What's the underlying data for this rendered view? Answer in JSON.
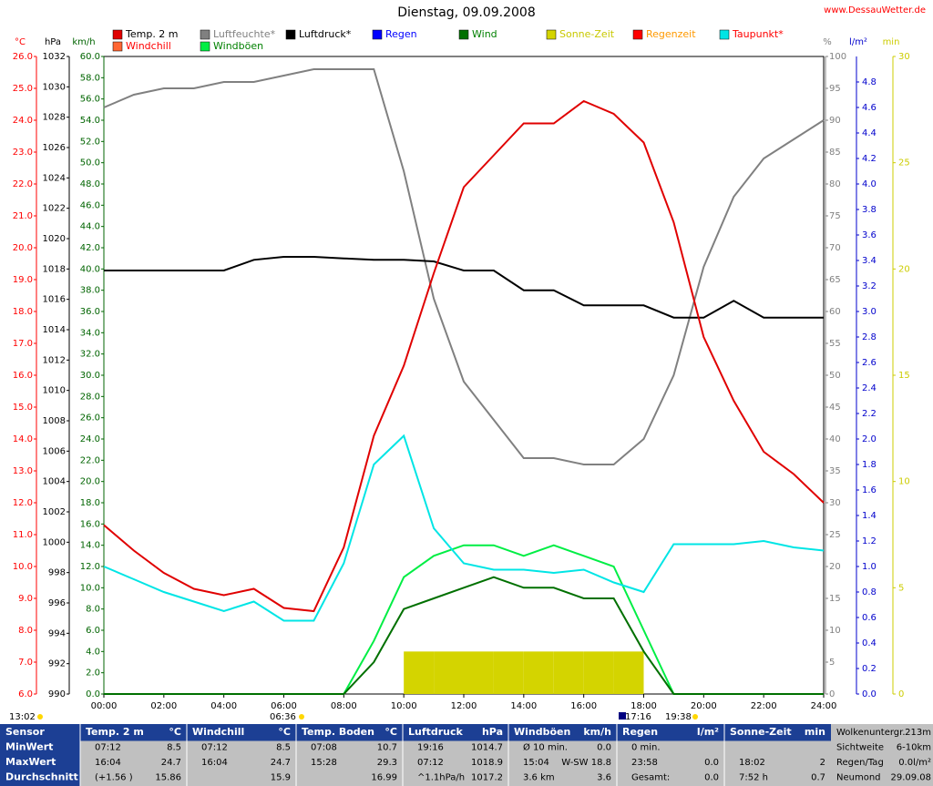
{
  "chart_data": {
    "type": "line",
    "title": "Dienstag, 09.09.2008",
    "site": "www.DessauWetter.de",
    "x": [
      0,
      1,
      2,
      3,
      4,
      5,
      6,
      7,
      8,
      9,
      10,
      11,
      12,
      13,
      14,
      15,
      16,
      17,
      18,
      19,
      20,
      21,
      22,
      23,
      24
    ],
    "xlim": [
      0,
      24
    ],
    "xticks": [
      {
        "value": 0,
        "label": "00:00"
      },
      {
        "value": 2,
        "label": "02:00"
      },
      {
        "value": 4,
        "label": "04:00"
      },
      {
        "value": 6,
        "label": "06:00"
      },
      {
        "value": 8,
        "label": "08:00"
      },
      {
        "value": 10,
        "label": "10:00"
      },
      {
        "value": 12,
        "label": "12:00"
      },
      {
        "value": 14,
        "label": "14:00"
      },
      {
        "value": 16,
        "label": "16:00"
      },
      {
        "value": 18,
        "label": "18:00"
      },
      {
        "value": 20,
        "label": "20:00"
      },
      {
        "value": 22,
        "label": "22:00"
      },
      {
        "value": 24,
        "label": "24:00"
      }
    ],
    "grid": false,
    "axes": {
      "c": {
        "label": "°C",
        "color": "#ff0000",
        "lim": [
          6,
          26
        ],
        "ticks": [
          {
            "value": 6,
            "label": "6.0"
          },
          {
            "value": 7,
            "label": "7.0"
          },
          {
            "value": 8,
            "label": "8.0"
          },
          {
            "value": 9,
            "label": "9.0"
          },
          {
            "value": 10,
            "label": "10.0"
          },
          {
            "value": 11,
            "label": "11.0"
          },
          {
            "value": 12,
            "label": "12.0"
          },
          {
            "value": 13,
            "label": "13.0"
          },
          {
            "value": 14,
            "label": "14.0"
          },
          {
            "value": 15,
            "label": "15.0"
          },
          {
            "value": 16,
            "label": "16.0"
          },
          {
            "value": 17,
            "label": "17.0"
          },
          {
            "value": 18,
            "label": "18.0"
          },
          {
            "value": 19,
            "label": "19.0"
          },
          {
            "value": 20,
            "label": "20.0"
          },
          {
            "value": 21,
            "label": "21.0"
          },
          {
            "value": 22,
            "label": "22.0"
          },
          {
            "value": 23,
            "label": "23.0"
          },
          {
            "value": 24,
            "label": "24.0"
          },
          {
            "value": 25,
            "label": "25.0"
          },
          {
            "value": 26,
            "label": "26.0"
          }
        ]
      },
      "hpa": {
        "label": "hPa",
        "color": "#000000",
        "lim": [
          990,
          1032
        ],
        "ticks": [
          990,
          992,
          994,
          996,
          998,
          1000,
          1002,
          1004,
          1006,
          1008,
          1010,
          1012,
          1014,
          1016,
          1018,
          1020,
          1022,
          1024,
          1026,
          1028,
          1030,
          1032
        ]
      },
      "kmh": {
        "label": "km/h",
        "color": "#006400",
        "lim": [
          0,
          60
        ],
        "ticks": [
          {
            "value": 0,
            "label": "0.0"
          },
          {
            "value": 2,
            "label": "2.0"
          },
          {
            "value": 4,
            "label": "4.0"
          },
          {
            "value": 6,
            "label": "6.0"
          },
          {
            "value": 8,
            "label": "8.0"
          },
          {
            "value": 10,
            "label": "10.0"
          },
          {
            "value": 12,
            "label": "12.0"
          },
          {
            "value": 14,
            "label": "14.0"
          },
          {
            "value": 16,
            "label": "16.0"
          },
          {
            "value": 18,
            "label": "18.0"
          },
          {
            "value": 20,
            "label": "20.0"
          },
          {
            "value": 22,
            "label": "22.0"
          },
          {
            "value": 24,
            "label": "24.0"
          },
          {
            "value": 26,
            "label": "26.0"
          },
          {
            "value": 28,
            "label": "28.0"
          },
          {
            "value": 30,
            "label": "30.0"
          },
          {
            "value": 32,
            "label": "32.0"
          },
          {
            "value": 34,
            "label": "34.0"
          },
          {
            "value": 36,
            "label": "36.0"
          },
          {
            "value": 38,
            "label": "38.0"
          },
          {
            "value": 40,
            "label": "40.0"
          },
          {
            "value": 42,
            "label": "42.0"
          },
          {
            "value": 44,
            "label": "44.0"
          },
          {
            "value": 46,
            "label": "46.0"
          },
          {
            "value": 48,
            "label": "48.0"
          },
          {
            "value": 50,
            "label": "50.0"
          },
          {
            "value": 52,
            "label": "52.0"
          },
          {
            "value": 54,
            "label": "54.0"
          },
          {
            "value": 56,
            "label": "56.0"
          },
          {
            "value": 58,
            "label": "58.0"
          },
          {
            "value": 60,
            "label": "60.0"
          }
        ]
      },
      "pct": {
        "label": "%",
        "color": "#808080",
        "lim": [
          0,
          100
        ],
        "ticks": [
          0,
          5,
          10,
          15,
          20,
          25,
          30,
          35,
          40,
          45,
          50,
          55,
          60,
          65,
          70,
          75,
          80,
          85,
          90,
          95,
          100
        ]
      },
      "lm2": {
        "label": "l/m²",
        "color": "#0000cc",
        "lim": [
          0,
          5
        ],
        "ticks": [
          {
            "value": 0,
            "label": "0.0"
          },
          {
            "value": 0.2,
            "label": "0.2"
          },
          {
            "value": 0.4,
            "label": "0.4"
          },
          {
            "value": 0.6,
            "label": "0.6"
          },
          {
            "value": 0.8,
            "label": "0.8"
          },
          {
            "value": 1,
            "label": "1.0"
          },
          {
            "value": 1.2,
            "label": "1.2"
          },
          {
            "value": 1.4,
            "label": "1.4"
          },
          {
            "value": 1.6,
            "label": "1.6"
          },
          {
            "value": 1.8,
            "label": "1.8"
          },
          {
            "value": 2,
            "label": "2.0"
          },
          {
            "value": 2.2,
            "label": "2.2"
          },
          {
            "value": 2.4,
            "label": "2.4"
          },
          {
            "value": 2.6,
            "label": "2.6"
          },
          {
            "value": 2.8,
            "label": "2.8"
          },
          {
            "value": 3,
            "label": "3.0"
          },
          {
            "value": 3.2,
            "label": "3.2"
          },
          {
            "value": 3.4,
            "label": "3.4"
          },
          {
            "value": 3.6,
            "label": "3.6"
          },
          {
            "value": 3.8,
            "label": "3.8"
          },
          {
            "value": 4,
            "label": "4.0"
          },
          {
            "value": 4.2,
            "label": "4.2"
          },
          {
            "value": 4.4,
            "label": "4.4"
          },
          {
            "value": 4.6,
            "label": "4.6"
          },
          {
            "value": 4.8,
            "label": "4.8"
          }
        ]
      },
      "min": {
        "label": "min",
        "color": "#cccc00",
        "lim": [
          0,
          30
        ],
        "ticks": [
          0,
          5,
          10,
          15,
          20,
          25,
          30
        ]
      }
    },
    "series": [
      {
        "name": "Sonne-Zeit",
        "color": "#d4d400",
        "axis": "min",
        "type": "bar",
        "values": [
          0,
          0,
          0,
          0,
          0,
          0,
          0,
          0,
          0,
          0,
          2,
          2,
          2,
          2,
          2,
          2,
          2,
          2,
          0,
          0,
          0,
          0,
          0,
          0,
          0
        ]
      },
      {
        "name": "Windböen",
        "color": "#00ee44",
        "axis": "kmh",
        "values": [
          0,
          0,
          0,
          0,
          0,
          0,
          0,
          0,
          0,
          5,
          11,
          13,
          14,
          14,
          13,
          14,
          13,
          12,
          6,
          0,
          0,
          0,
          0,
          0,
          0
        ]
      },
      {
        "name": "Wind",
        "color": "#007000",
        "axis": "kmh",
        "values": [
          0,
          0,
          0,
          0,
          0,
          0,
          0,
          0,
          0,
          3,
          8,
          9,
          10,
          11,
          10,
          10,
          9,
          9,
          4,
          0,
          0,
          0,
          0,
          0,
          0
        ]
      },
      {
        "name": "Taupunkt*",
        "color": "#00e5e5",
        "axis": "c",
        "values": [
          10.0,
          9.6,
          9.2,
          8.9,
          8.6,
          8.9,
          8.3,
          8.3,
          10.1,
          13.2,
          14.1,
          11.2,
          10.1,
          9.9,
          9.9,
          9.8,
          9.9,
          9.5,
          9.2,
          10.7,
          10.7,
          10.7,
          10.8,
          10.6,
          10.5
        ]
      },
      {
        "name": "Luftfeuchte*",
        "color": "#808080",
        "axis": "pct",
        "values": [
          92,
          94,
          95,
          95,
          96,
          96,
          97,
          98,
          98,
          98,
          82,
          62,
          49,
          43,
          37,
          37,
          36,
          36,
          40,
          50,
          67,
          78,
          84,
          87,
          90
        ]
      },
      {
        "name": "Luftdruck*",
        "color": "#000000",
        "axis": "hpa",
        "values": [
          1017.9,
          1017.9,
          1017.9,
          1017.9,
          1017.9,
          1018.6,
          1018.8,
          1018.8,
          1018.7,
          1018.6,
          1018.6,
          1018.5,
          1017.9,
          1017.9,
          1016.6,
          1016.6,
          1015.6,
          1015.6,
          1015.6,
          1014.8,
          1014.8,
          1015.9,
          1014.8,
          1014.8,
          1014.8
        ]
      },
      {
        "name": "Temp. 2 m",
        "color": "#e00000",
        "axis": "c",
        "values": [
          11.3,
          10.5,
          9.8,
          9.3,
          9.1,
          9.3,
          8.7,
          8.6,
          10.6,
          14.1,
          16.3,
          19.2,
          21.9,
          22.9,
          23.9,
          23.9,
          24.6,
          24.2,
          23.3,
          20.8,
          17.2,
          15.2,
          13.6,
          12.9,
          12.0
        ]
      },
      {
        "name": "Regen",
        "color": "#0000ff",
        "axis": "lm2"
      },
      {
        "name": "Sonne-Zeit",
        "color": "#cccc00"
      },
      {
        "name": "Regenzeit",
        "color": "#ff0000"
      },
      {
        "name": "Windchill",
        "color": "#ff6633"
      }
    ],
    "annotations": [
      "13:02",
      "06:36",
      "17:16",
      "19:38"
    ]
  },
  "table": {
    "row_labels": [
      "Sensor",
      "MinWert",
      "MaxWert",
      "Durchschnitt"
    ],
    "columns": [
      {
        "header": [
          "Temp. 2 m",
          "°C"
        ],
        "rows": [
          [
            "07:12",
            "8.5"
          ],
          [
            "16:04",
            "24.7"
          ],
          [
            "(+1.56 )",
            "15.86"
          ]
        ]
      },
      {
        "header": [
          "Windchill",
          "°C"
        ],
        "rows": [
          [
            "07:12",
            "8.5"
          ],
          [
            "16:04",
            "24.7"
          ],
          [
            null,
            "15.9"
          ]
        ]
      },
      {
        "header": [
          "Temp. Boden",
          "°C"
        ],
        "rows": [
          [
            "07:08",
            "10.7"
          ],
          [
            "15:28",
            "29.3"
          ],
          [
            null,
            "16.99"
          ]
        ]
      },
      {
        "header": [
          "Luftdruck",
          "hPa"
        ],
        "rows": [
          [
            "19:16",
            "1014.7"
          ],
          [
            "07:12",
            "1018.9"
          ],
          [
            "^1.1hPa/h",
            "1017.2"
          ]
        ]
      },
      {
        "header": [
          "Windböen",
          "km/h"
        ],
        "rows": [
          [
            "Ø 10 min.",
            "0.0"
          ],
          [
            "15:04",
            "W-SW 18.8"
          ],
          [
            "3.6 km",
            "3.6"
          ]
        ]
      },
      {
        "header": [
          "Regen",
          "l/m²"
        ],
        "rows": [
          [
            "0 min.",
            null
          ],
          [
            "23:58",
            "0.0"
          ],
          [
            "Gesamt:",
            "0.0"
          ]
        ]
      },
      {
        "header": [
          "Sonne-Zeit",
          "min"
        ],
        "rows": [
          [
            null,
            null
          ],
          [
            "18:02",
            "2"
          ],
          [
            "7:52 h",
            "0.7"
          ]
        ]
      }
    ],
    "extra": [
      [
        "Wolkenuntergr.",
        "213m"
      ],
      [
        "Sichtweite",
        "6-10km"
      ],
      [
        "Regen/Tag",
        "0.0l/m²"
      ],
      [
        "Neumond",
        "29.09.08"
      ]
    ]
  }
}
